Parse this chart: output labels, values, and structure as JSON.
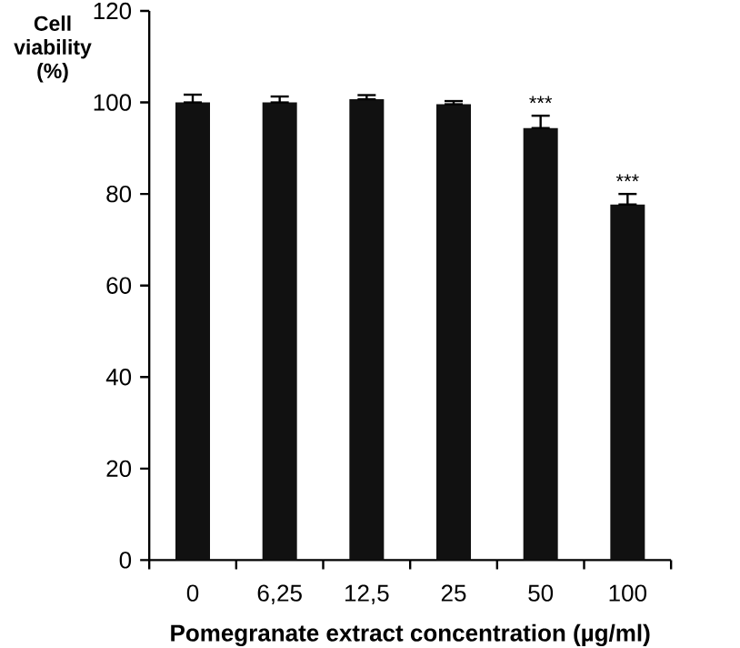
{
  "chart_data": {
    "type": "bar",
    "ylabel": "Cell viability (%)",
    "xlabel": "Pomegranate extract concentration (µg/ml)",
    "categories": [
      "0",
      "6,25",
      "12,5",
      "25",
      "50",
      "100"
    ],
    "values": [
      100,
      100,
      100.7,
      99.6,
      94.4,
      77.7
    ],
    "errors": [
      [
        100,
        101.7
      ],
      [
        100,
        101.3
      ],
      [
        100.7,
        101.6
      ],
      [
        99.6,
        100.3
      ],
      [
        94.4,
        97.1
      ],
      [
        77.7,
        80
      ]
    ],
    "color": "#111111",
    "ylim": [
      0,
      120
    ],
    "yticks": [
      0,
      20,
      40,
      60,
      80,
      100,
      120
    ],
    "annotations": [
      {
        "text": "***",
        "x": "50",
        "y": 97.1
      },
      {
        "text": "***",
        "x": "100",
        "y": 80
      }
    ],
    "grid": false
  }
}
